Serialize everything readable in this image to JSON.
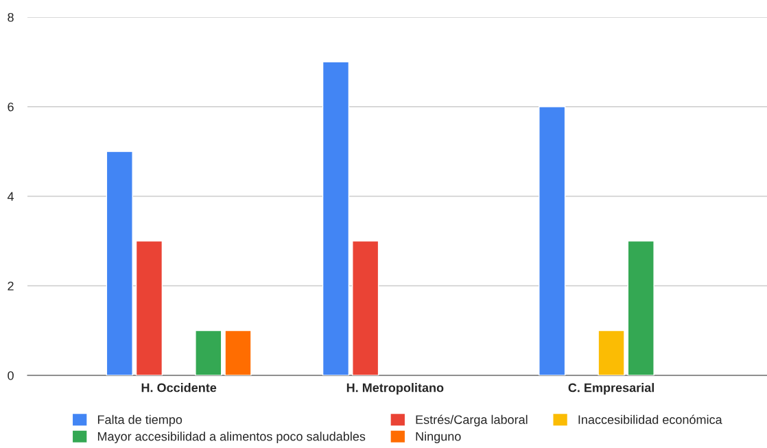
{
  "chart_data": {
    "type": "bar",
    "categories": [
      "H. Occidente",
      "H. Metropolitano",
      "C. Empresarial"
    ],
    "series": [
      {
        "name": "Falta de tiempo",
        "color": "#4285f4",
        "values": [
          5,
          7,
          6
        ]
      },
      {
        "name": "Estrés/Carga laboral",
        "color": "#ea4335",
        "values": [
          3,
          3,
          null
        ]
      },
      {
        "name": "Inaccesibilidad económica",
        "color": "#fbbc04",
        "values": [
          null,
          null,
          1
        ]
      },
      {
        "name": "Mayor accesibilidad a alimentos poco saludables",
        "color": "#34a853",
        "values": [
          1,
          null,
          3
        ]
      },
      {
        "name": "Ninguno",
        "color": "#ff6d01",
        "values": [
          1,
          null,
          null
        ]
      }
    ],
    "ylim": [
      0,
      8
    ],
    "yticks": [
      0,
      2,
      4,
      6,
      8
    ],
    "grid": "y",
    "legend": "bottom"
  }
}
